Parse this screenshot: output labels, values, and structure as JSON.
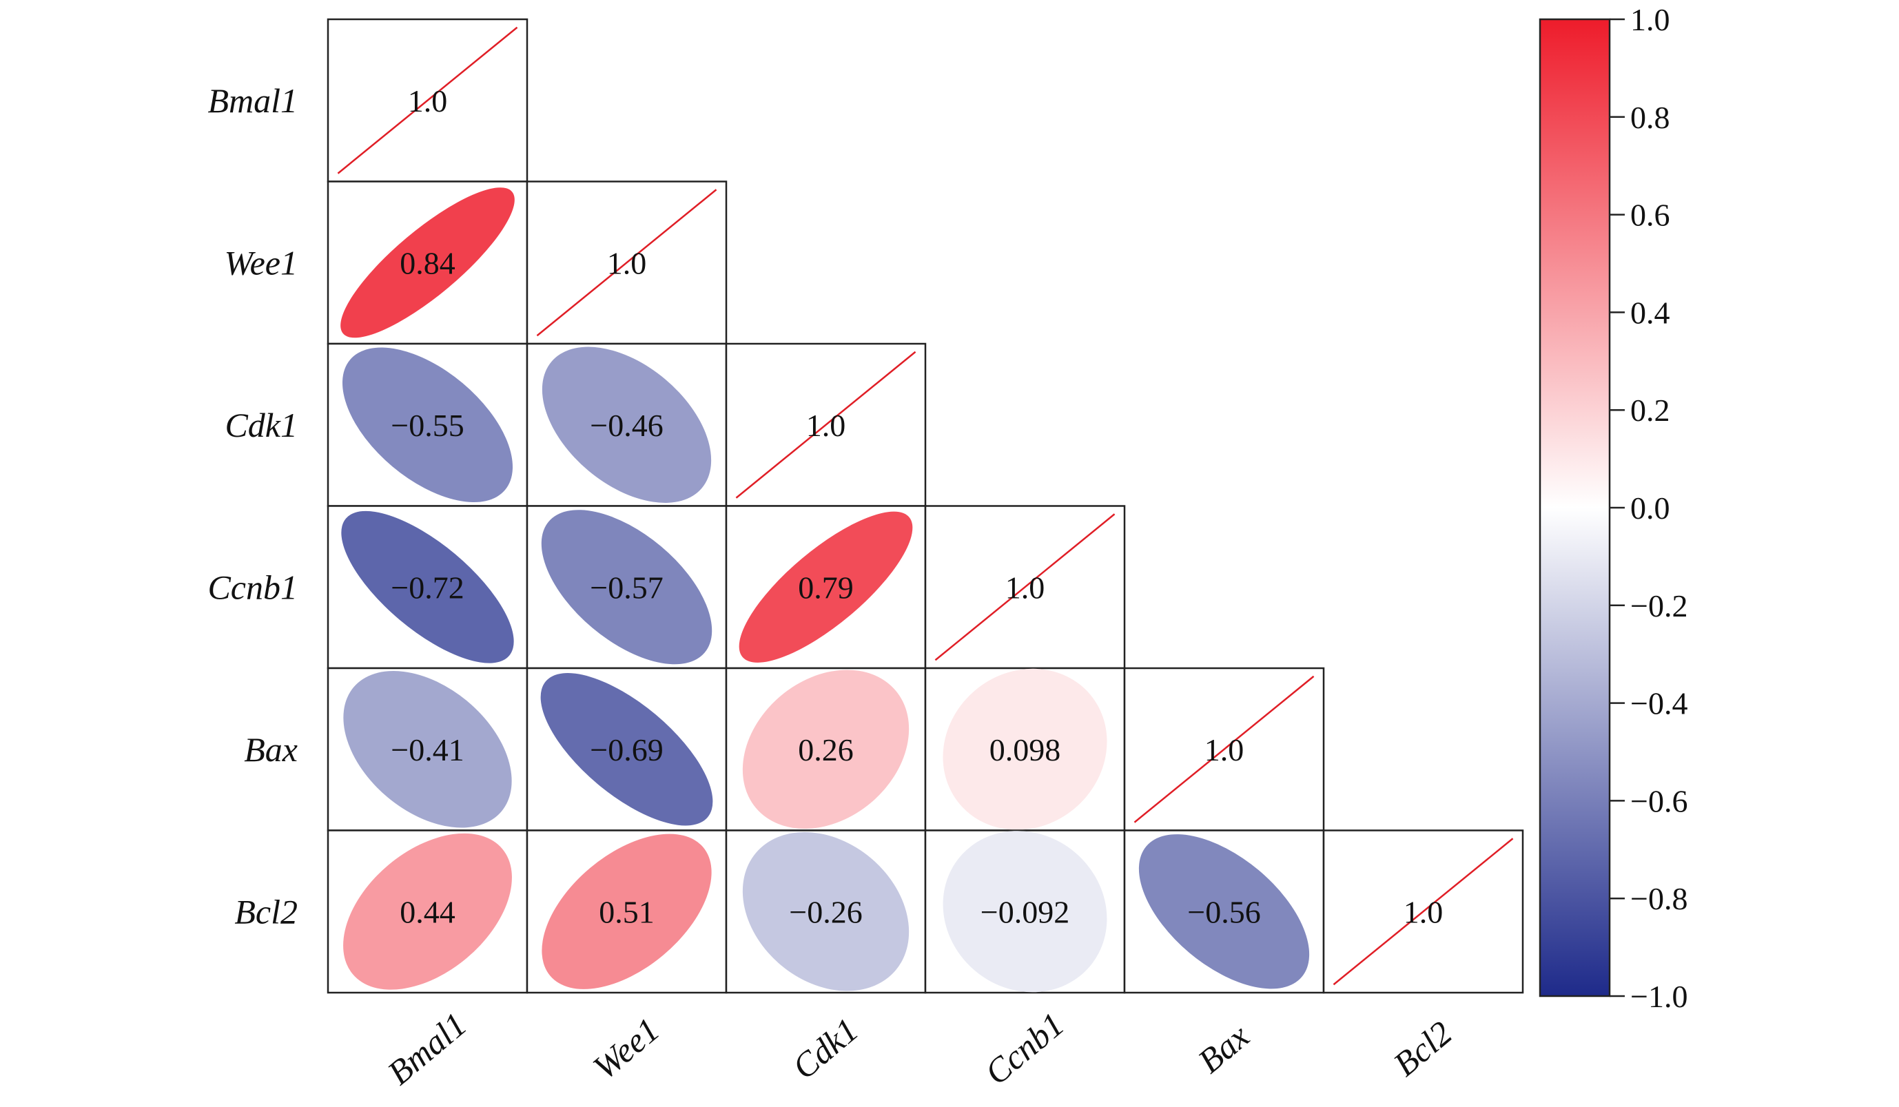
{
  "chart_data": {
    "type": "heatmap",
    "subtype": "correlation-ellipse-lower-triangle",
    "variables": [
      "Bmal1",
      "Wee1",
      "Cdk1",
      "Ccnb1",
      "Bax",
      "Bcl2"
    ],
    "matrix": [
      [
        1.0,
        null,
        null,
        null,
        null,
        null
      ],
      [
        0.84,
        1.0,
        null,
        null,
        null,
        null
      ],
      [
        -0.55,
        -0.46,
        1.0,
        null,
        null,
        null
      ],
      [
        -0.72,
        -0.57,
        0.79,
        1.0,
        null,
        null
      ],
      [
        -0.41,
        -0.69,
        0.26,
        0.098,
        1.0,
        null
      ],
      [
        0.44,
        0.51,
        -0.26,
        -0.092,
        -0.56,
        1.0
      ]
    ],
    "labels": [
      [
        "1.0"
      ],
      [
        "0.84",
        "1.0"
      ],
      [
        "−0.55",
        "−0.46",
        "1.0"
      ],
      [
        "−0.72",
        "−0.57",
        "0.79",
        "1.0"
      ],
      [
        "−0.41",
        "−0.69",
        "0.26",
        "0.098",
        "1.0"
      ],
      [
        "0.44",
        "0.51",
        "−0.26",
        "−0.092",
        "−0.56",
        "1.0"
      ]
    ],
    "colorbar": {
      "range": [
        -1.0,
        1.0
      ],
      "ticks": [
        1.0,
        0.8,
        0.6,
        0.4,
        0.2,
        0.0,
        -0.2,
        -0.4,
        -0.6,
        -0.8,
        -1.0
      ],
      "tick_labels": [
        "1.0",
        "0.8",
        "0.6",
        "0.4",
        "0.2",
        "0.0",
        "−0.2",
        "−0.4",
        "−0.6",
        "−0.8",
        "−1.0"
      ],
      "colors": {
        "negative": "#1e2a8a",
        "zero": "#ffffff",
        "positive": "#ee1c2b"
      },
      "placement": "right"
    },
    "diagonal_line_color": "#e01e26",
    "grid": false,
    "title": "",
    "xlabel": "",
    "ylabel": ""
  }
}
